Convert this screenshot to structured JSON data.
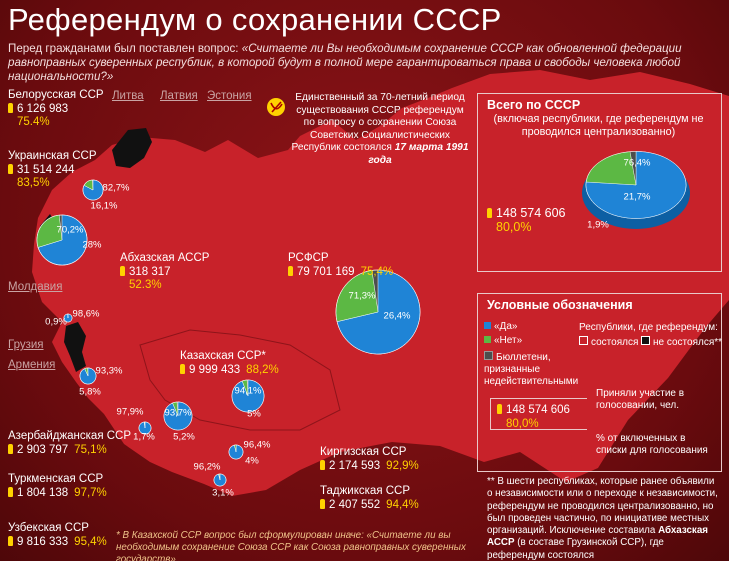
{
  "title": "Референдум о сохранении СССР",
  "subtitle": {
    "lead": "Перед гражданами был поставлен вопрос:",
    "question": "«Считаете ли Вы необходимым сохранение СССР как обновленной федерации равноправных суверенных республик, в которой будут в полной мере гарантироваться права и свободы человека любой национальности?»"
  },
  "note": {
    "text": "Единственный за 70-летний период существования СССР референдум по вопросу о сохранении Союза Советских Социалистических Республик состоялся",
    "date": "17 марта 1991 года"
  },
  "not_held": [
    "Литва",
    "Латвия",
    "Эстония",
    "Молдавия",
    "Грузия",
    "Армения"
  ],
  "republics": [
    {
      "name": "Белорусская ССР",
      "voters": "6 126 983",
      "turnout": "75.4%",
      "pie": {
        "values": [
          82.7,
          16.1
        ],
        "value_labels": [
          "82,7%",
          "16,1%"
        ]
      }
    },
    {
      "name": "Украинская ССР",
      "voters": "31 514 244",
      "turnout": "83,5%",
      "pie": {
        "values": [
          70.2,
          28
        ],
        "value_labels": [
          "70,2%",
          "28%"
        ]
      }
    },
    {
      "name": "Абхазская АССР",
      "voters": "318 317",
      "turnout": "52.3%",
      "pie": {
        "values": [
          98.6,
          0.9
        ],
        "value_labels": [
          "98,6%",
          "0,9%"
        ]
      }
    },
    {
      "name": "РСФСР",
      "voters": "79 701 169",
      "turnout": "75,4%",
      "pie": {
        "values": [
          71.3,
          26.4
        ],
        "value_labels": [
          "71,3%",
          "26,4%"
        ]
      }
    },
    {
      "name": "Казахская ССР*",
      "voters": "9 999 433",
      "turnout": "88,2%",
      "pie": {
        "values": [
          94.1,
          5
        ],
        "value_labels": [
          "94,1%",
          "5%"
        ]
      }
    },
    {
      "name": "Азербайджанская ССР",
      "voters": "2 903 797",
      "turnout": "75,1%",
      "pie": {
        "values": [
          93.3,
          5.8
        ],
        "value_labels": [
          "93,3%",
          "5,8%"
        ]
      }
    },
    {
      "name": "Туркменская ССР",
      "voters": "1 804 138",
      "turnout": "97,7%",
      "pie": {
        "values": [
          97.9,
          1.7
        ],
        "value_labels": [
          "97,9%",
          "1,7%"
        ]
      }
    },
    {
      "name": "Узбекская ССР",
      "voters": "9 816 333",
      "turnout": "95,4%",
      "pie": {
        "values": [
          93.7,
          5.2
        ],
        "value_labels": [
          "93,7%",
          "5,2%"
        ]
      }
    },
    {
      "name": "Киргизская ССР",
      "voters": "2 174 593",
      "turnout": "92,9%",
      "pie": {
        "values": [
          96.4,
          4
        ],
        "value_labels": [
          "96,4%",
          "4%"
        ]
      }
    },
    {
      "name": "Таджикская ССР",
      "voters": "2 407 552",
      "turnout": "94,4%",
      "pie": {
        "values": [
          96.2,
          3.1
        ],
        "value_labels": [
          "96,2%",
          "3,1%"
        ]
      }
    }
  ],
  "total": {
    "title": "Всего по СССР",
    "subtitle": "(включая республики, где референдум не проводился централизованно)",
    "voters": "148 574 606",
    "turnout": "80,0%",
    "pie": {
      "values": [
        76.4,
        21.7,
        1.9
      ],
      "value_labels": [
        "76,4%",
        "21,7%",
        "1,9%"
      ]
    }
  },
  "legend": {
    "title": "Условные обозначения",
    "yes": "«Да»",
    "no": "«Нет»",
    "invalid": "Бюллетени, признанные недействительными",
    "republics_title": "Республики, где референдум:",
    "held": "состоялся",
    "not_held": "не состоялся**",
    "voters_caption": "Приняли участие в голосовании, чел.",
    "voters_sample": "148 574 606",
    "turnout_sample": "80,0%",
    "turnout_caption": "% от включенных в списки для голосования"
  },
  "footnote_not_held": {
    "before": "** В шести республиках, которые ранее объявили о независимости или о переходе к независимости, референдум не проводился централизованно, но был проведен частично, по инициативе местных организаций. Исключение составила",
    "bold": "Абхазская АССР",
    "after": "(в составе Грузинской ССР), где референдум состоялся"
  },
  "footnote_kazakh": "* В Казахской ССР вопрос был сформулирован иначе: «Считаете ли вы необходимым сохранение Союза ССР как Союза равноправных суверенных государств»"
}
